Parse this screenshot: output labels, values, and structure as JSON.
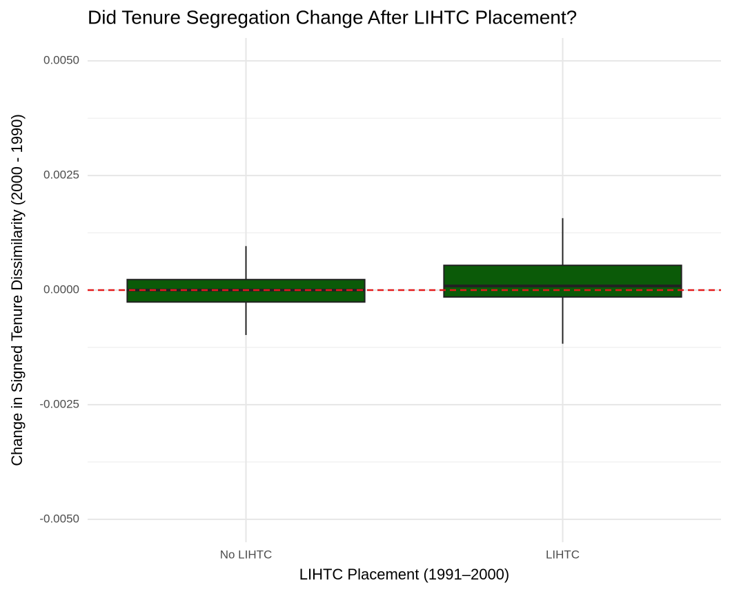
{
  "chart_data": {
    "type": "box",
    "title": "Did Tenure Segregation Change After LIHTC Placement?",
    "x_label": "LIHTC Placement (1991–2000)",
    "y_label": "Change in Signed Tenure Dissimilarity (2000 - 1990)",
    "categories": [
      "No LIHTC",
      "LIHTC"
    ],
    "whisker_low": [
      -0.00098,
      -0.00117
    ],
    "q1": [
      -0.00026,
      -0.00015
    ],
    "median": [
      0.0,
      9e-05
    ],
    "q3": [
      0.00023,
      0.00054
    ],
    "whisker_high": [
      0.00096,
      0.00157
    ],
    "color": "#0b5a08",
    "ylim": [
      -0.0055,
      0.0055
    ],
    "yticks": [
      {
        "value": -0.005,
        "label": "-0.0050"
      },
      {
        "value": -0.0025,
        "label": "-0.0025"
      },
      {
        "value": 0,
        "label": "0.0000"
      },
      {
        "value": 0.0025,
        "label": "0.0025"
      },
      {
        "value": 0.005,
        "label": "0.0050"
      }
    ],
    "minor_yticks": [
      -0.00375,
      -0.00125,
      0.00125,
      0.00375
    ],
    "reference_line": 0,
    "reference_color": "#e41a1c",
    "grid": true
  }
}
